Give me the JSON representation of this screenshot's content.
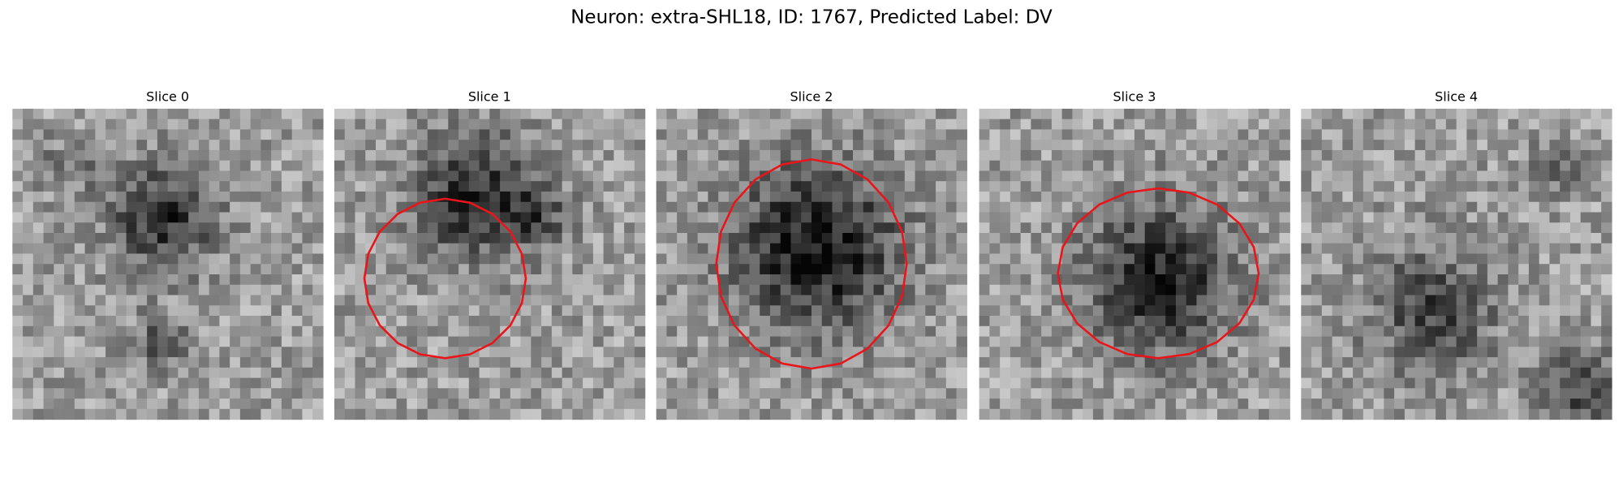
{
  "title": "Neuron: extra-SHL18, ID: 1767, Predicted Label: DV",
  "panels": [
    {
      "title": "Slice 0"
    },
    {
      "title": "Slice 1"
    },
    {
      "title": "Slice 2"
    },
    {
      "title": "Slice 3"
    },
    {
      "title": "Slice 4"
    }
  ]
}
